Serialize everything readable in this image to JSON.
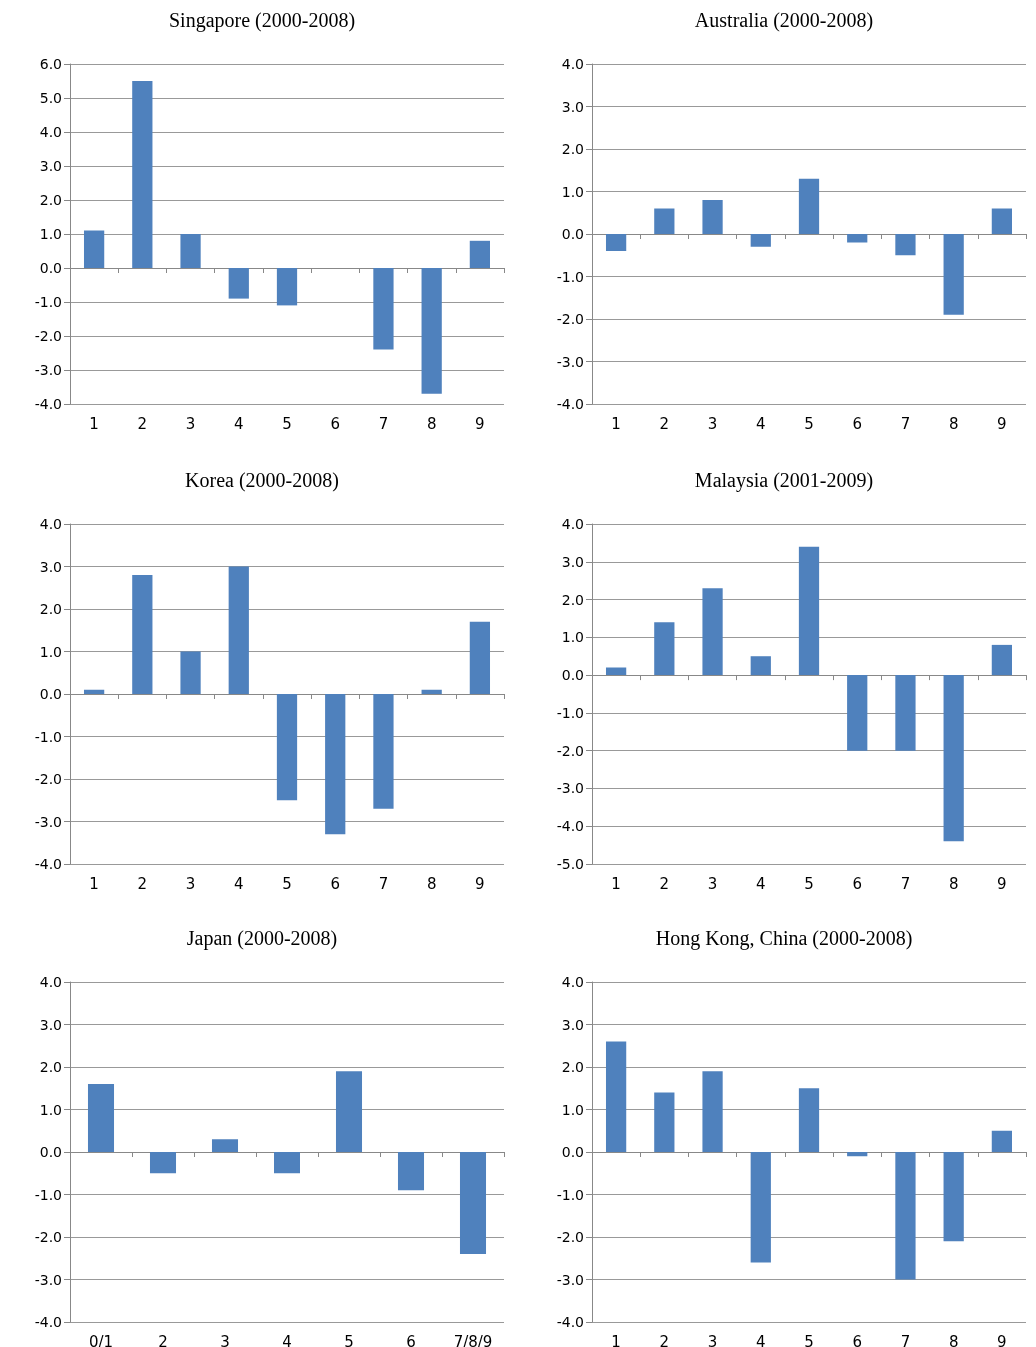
{
  "chart_data": [
    {
      "type": "bar",
      "title": "Singapore (2000-2008)",
      "categories": [
        "1",
        "2",
        "3",
        "4",
        "5",
        "6",
        "7",
        "8",
        "9"
      ],
      "values": [
        1.1,
        5.5,
        1.0,
        -0.9,
        -1.1,
        0,
        -2.4,
        -3.7,
        0.8
      ],
      "color": "#4f81bd",
      "ylim": [
        -4,
        6
      ],
      "yticks": [
        {
          "value": -4,
          "label": "-4.0"
        },
        {
          "value": -3,
          "label": "-3.0"
        },
        {
          "value": -2,
          "label": "-2.0"
        },
        {
          "value": -1,
          "label": "-1.0"
        },
        {
          "value": 0,
          "label": "0.0"
        },
        {
          "value": 1,
          "label": "1.0"
        },
        {
          "value": 2,
          "label": "2.0"
        },
        {
          "value": 3,
          "label": "3.0"
        },
        {
          "value": 4,
          "label": "4.0"
        },
        {
          "value": 5,
          "label": "5.0"
        },
        {
          "value": 6,
          "label": "6.0"
        }
      ],
      "grid": "y"
    },
    {
      "type": "bar",
      "title": "Australia (2000-2008)",
      "categories": [
        "1",
        "2",
        "3",
        "4",
        "5",
        "6",
        "7",
        "8",
        "9"
      ],
      "values": [
        -0.4,
        0.6,
        0.8,
        -0.3,
        1.3,
        -0.2,
        -0.5,
        -1.9,
        0.6
      ],
      "color": "#4f81bd",
      "ylim": [
        -4,
        4
      ],
      "yticks": [
        {
          "value": -4,
          "label": "-4.0"
        },
        {
          "value": -3,
          "label": "-3.0"
        },
        {
          "value": -2,
          "label": "-2.0"
        },
        {
          "value": -1,
          "label": "-1.0"
        },
        {
          "value": 0,
          "label": "0.0"
        },
        {
          "value": 1,
          "label": "1.0"
        },
        {
          "value": 2,
          "label": "2.0"
        },
        {
          "value": 3,
          "label": "3.0"
        },
        {
          "value": 4,
          "label": "4.0"
        }
      ],
      "grid": "y"
    },
    {
      "type": "bar",
      "title": "Korea (2000-2008)",
      "categories": [
        "1",
        "2",
        "3",
        "4",
        "5",
        "6",
        "7",
        "8",
        "9"
      ],
      "values": [
        0.1,
        2.8,
        1.0,
        3.0,
        -2.5,
        -3.3,
        -2.7,
        0.1,
        1.7
      ],
      "color": "#4f81bd",
      "ylim": [
        -4,
        4
      ],
      "yticks": [
        {
          "value": -4,
          "label": "-4.0"
        },
        {
          "value": -3,
          "label": "-3.0"
        },
        {
          "value": -2,
          "label": "-2.0"
        },
        {
          "value": -1,
          "label": "-1.0"
        },
        {
          "value": 0,
          "label": "0.0"
        },
        {
          "value": 1,
          "label": "1.0"
        },
        {
          "value": 2,
          "label": "2.0"
        },
        {
          "value": 3,
          "label": "3.0"
        },
        {
          "value": 4,
          "label": "4.0"
        }
      ],
      "grid": "y"
    },
    {
      "type": "bar",
      "title": "Malaysia (2001-2009)",
      "categories": [
        "1",
        "2",
        "3",
        "4",
        "5",
        "6",
        "7",
        "8",
        "9"
      ],
      "values": [
        0.2,
        1.4,
        2.3,
        0.5,
        3.4,
        -2.0,
        -2.0,
        -4.4,
        0.8
      ],
      "color": "#4f81bd",
      "ylim": [
        -5,
        4
      ],
      "yticks": [
        {
          "value": -5,
          "label": "-5.0"
        },
        {
          "value": -4,
          "label": "-4.0"
        },
        {
          "value": -3,
          "label": "-3.0"
        },
        {
          "value": -2,
          "label": "-2.0"
        },
        {
          "value": -1,
          "label": "-1.0"
        },
        {
          "value": 0,
          "label": "0.0"
        },
        {
          "value": 1,
          "label": "1.0"
        },
        {
          "value": 2,
          "label": "2.0"
        },
        {
          "value": 3,
          "label": "3.0"
        },
        {
          "value": 4,
          "label": "4.0"
        }
      ],
      "grid": "y"
    },
    {
      "type": "bar",
      "title": "Japan (2000-2008)",
      "categories": [
        "0/1",
        "2",
        "3",
        "4",
        "5",
        "6",
        "7/8/9"
      ],
      "values": [
        1.6,
        -0.5,
        0.3,
        -0.5,
        1.9,
        -0.9,
        -2.4
      ],
      "color": "#4f81bd",
      "ylim": [
        -4,
        4
      ],
      "yticks": [
        {
          "value": -4,
          "label": "-4.0"
        },
        {
          "value": -3,
          "label": "-3.0"
        },
        {
          "value": -2,
          "label": "-2.0"
        },
        {
          "value": -1,
          "label": "-1.0"
        },
        {
          "value": 0,
          "label": "0.0"
        },
        {
          "value": 1,
          "label": "1.0"
        },
        {
          "value": 2,
          "label": "2.0"
        },
        {
          "value": 3,
          "label": "3.0"
        },
        {
          "value": 4,
          "label": "4.0"
        }
      ],
      "grid": "y"
    },
    {
      "type": "bar",
      "title": "Hong Kong, China (2000-2008)",
      "categories": [
        "1",
        "2",
        "3",
        "4",
        "5",
        "6",
        "7",
        "8",
        "9"
      ],
      "values": [
        2.6,
        1.4,
        1.9,
        -2.6,
        1.5,
        -0.1,
        -3.0,
        -2.1,
        0.5
      ],
      "color": "#4f81bd",
      "ylim": [
        -4,
        4
      ],
      "yticks": [
        {
          "value": -4,
          "label": "-4.0"
        },
        {
          "value": -3,
          "label": "-3.0"
        },
        {
          "value": -2,
          "label": "-2.0"
        },
        {
          "value": -1,
          "label": "-1.0"
        },
        {
          "value": 0,
          "label": "0.0"
        },
        {
          "value": 1,
          "label": "1.0"
        },
        {
          "value": 2,
          "label": "2.0"
        },
        {
          "value": 3,
          "label": "3.0"
        },
        {
          "value": 4,
          "label": "4.0"
        }
      ],
      "grid": "y"
    }
  ]
}
